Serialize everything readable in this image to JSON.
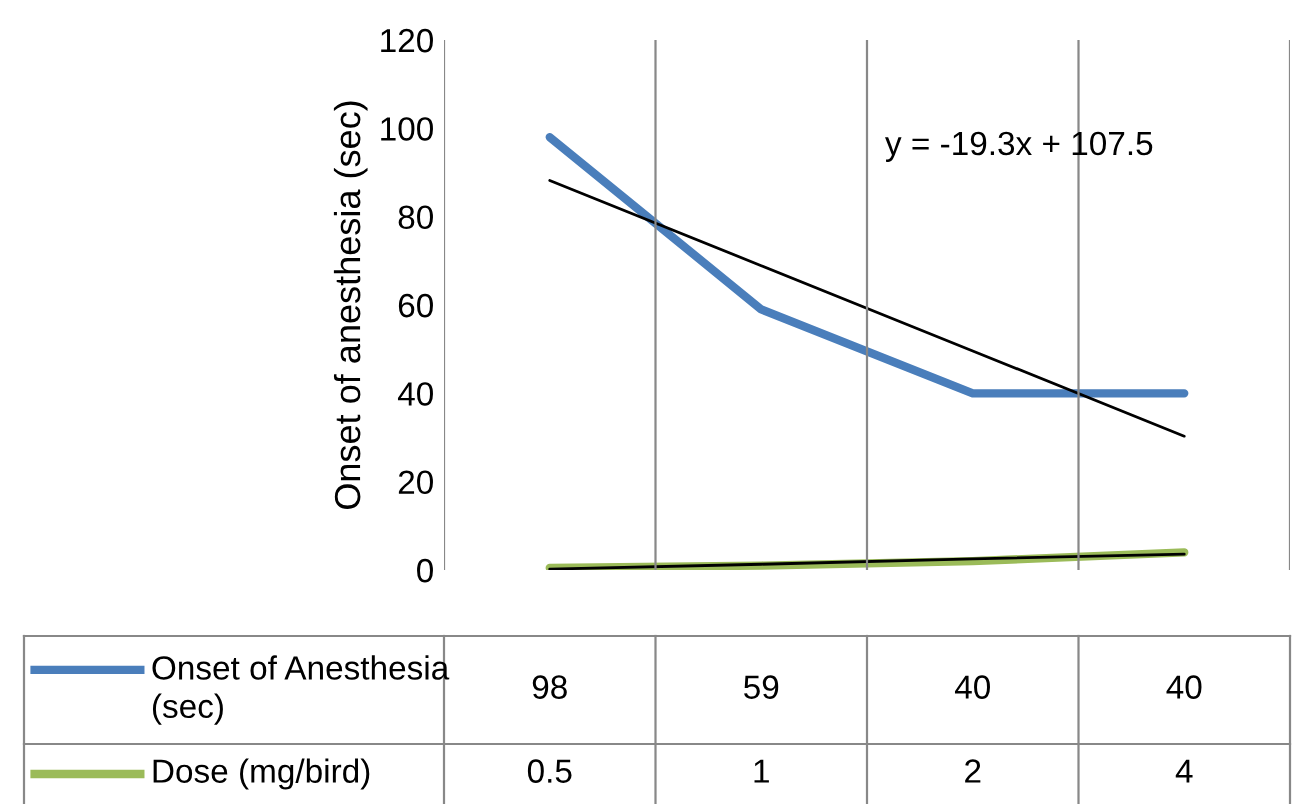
{
  "chart_data": {
    "type": "line",
    "ylabel": "Onset of anesthesia (sec)",
    "categories": [
      null,
      null,
      null,
      null
    ],
    "series": [
      {
        "name": "Onset of Anesthesia (sec)",
        "color": "#4a7ebb",
        "values": [
          98,
          59,
          40,
          40
        ],
        "value_labels": [
          "98",
          "59",
          "40",
          "40"
        ]
      },
      {
        "name": "Dose (mg/bird)",
        "color": "#9bbb59",
        "values": [
          0.5,
          1,
          2,
          4
        ],
        "value_labels": [
          "0.5",
          "1",
          "2",
          "4"
        ]
      },
      {
        "color": "#000000",
        "values": [
          88.2,
          68.9,
          49.6,
          30.3
        ]
      },
      {
        "color": "#000000",
        "values": [
          0.2,
          1.3,
          2.5,
          3.6
        ]
      }
    ],
    "annotations": [
      "y = -19.3x + 107.5"
    ],
    "ylim": [
      0,
      120
    ],
    "yticks": [
      0,
      20,
      40,
      60,
      80,
      100,
      120
    ],
    "grid": "x",
    "tick_labels": "y",
    "legend": "bottom"
  }
}
